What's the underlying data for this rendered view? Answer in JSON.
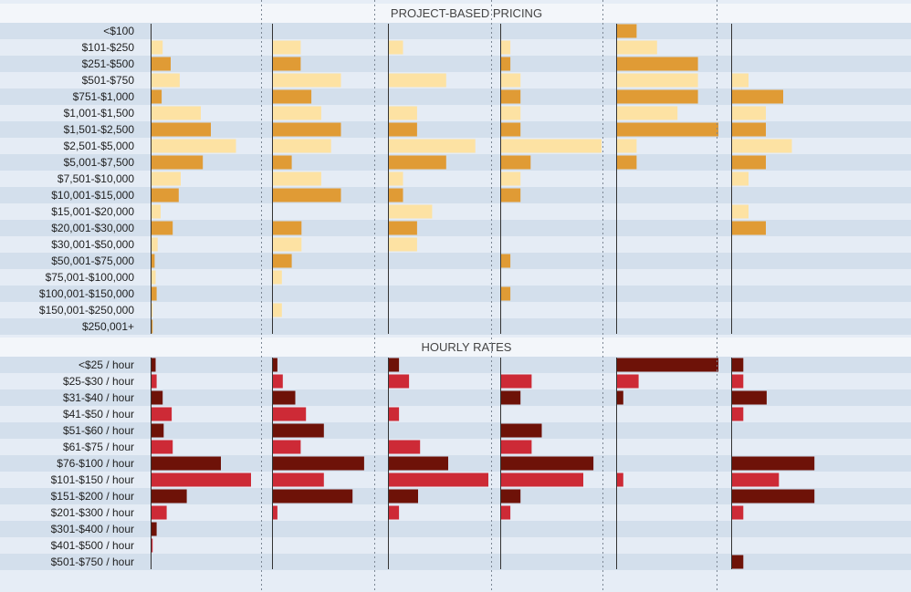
{
  "chart_data": [
    {
      "type": "bar",
      "title": "PROJECT-BASED PRICING",
      "categories": [
        "<$100",
        "$101-$250",
        "$251-$500",
        "$501-$750",
        "$751-$1,000",
        "$1,001-$1,500",
        "$1,501-$2,500",
        "$2,501-$5,000",
        "$5,001-$7,500",
        "$7,501-$10,000",
        "$10,001-$15,000",
        "$15,001-$20,000",
        "$20,001-$30,000",
        "$30,001-$50,000",
        "$50,001-$75,000",
        "$75,001-$100,000",
        "$100,001-$150,000",
        "$150,001-$250,000",
        "$250,001+"
      ],
      "series": [
        {
          "values": [
            0,
            1.2,
            2.0,
            2.9,
            1.1,
            5.0,
            6.0,
            8.5,
            5.2,
            3.0,
            2.8,
            1.0,
            2.2,
            0.7,
            0.4,
            0.5,
            0.6,
            0.2,
            0.2
          ]
        },
        {
          "values": [
            0,
            3.2,
            3.2,
            7.7,
            4.4,
            5.5,
            7.7,
            6.6,
            2.2,
            5.5,
            7.7,
            0,
            3.3,
            3.3,
            2.2,
            1.1,
            0,
            1.1,
            0
          ]
        },
        {
          "values": [
            0,
            1.5,
            0,
            5.8,
            0,
            2.9,
            2.9,
            8.7,
            5.8,
            1.5,
            1.5,
            4.4,
            2.9,
            2.9,
            0,
            0,
            0,
            0,
            0
          ]
        },
        {
          "values": [
            0,
            1,
            1,
            2,
            2,
            2,
            2,
            10,
            3,
            2,
            2,
            0,
            0,
            0,
            1,
            0,
            1,
            0,
            0
          ]
        },
        {
          "values": [
            2,
            4,
            8,
            8,
            8,
            6,
            10,
            2,
            2,
            0,
            0,
            0,
            0,
            0,
            0,
            0,
            0,
            0,
            0
          ]
        },
        {
          "values": [
            0,
            0,
            0,
            2,
            6,
            4,
            4,
            7,
            4,
            2,
            0,
            2,
            4,
            0,
            0,
            0,
            0,
            0,
            0
          ]
        }
      ],
      "xlim": [
        0,
        10
      ]
    },
    {
      "type": "bar",
      "title": "HOURLY RATES",
      "categories": [
        "<$25 / hour",
        "$25-$30 / hour",
        "$31-$40 / hour",
        "$41-$50 / hour",
        "$51-$60 / hour",
        "$61-$75 / hour",
        "$76-$100 / hour",
        "$101-$150 / hour",
        "$151-$200 / hour",
        "$201-$300 / hour",
        "$301-$400 / hour",
        "$401-$500 / hour",
        "$501-$750 / hour"
      ],
      "series": [
        {
          "values": [
            0.5,
            0.6,
            1.2,
            2.1,
            1.3,
            2.2,
            7.0,
            10.0,
            3.6,
            1.6,
            0.6,
            0.2,
            0
          ]
        },
        {
          "values": [
            0.6,
            1.2,
            2.6,
            3.8,
            5.8,
            3.2,
            10.3,
            5.8,
            9.0,
            0.6,
            0,
            0,
            0
          ]
        },
        {
          "values": [
            1.1,
            2.1,
            0,
            1.1,
            0,
            3.2,
            6.0,
            10.0,
            3.0,
            1.1,
            0,
            0,
            0
          ]
        },
        {
          "values": [
            0,
            3.1,
            2.0,
            0,
            4.1,
            3.1,
            9.2,
            8.2,
            2.0,
            1.0,
            0,
            0,
            0
          ]
        },
        {
          "values": [
            10,
            2.2,
            0.7,
            0,
            0,
            0,
            0,
            0.7,
            0,
            0,
            0,
            0,
            0
          ]
        },
        {
          "values": [
            1.4,
            1.4,
            4.1,
            1.4,
            0,
            0,
            9.6,
            5.5,
            9.6,
            1.4,
            0,
            0,
            1.4
          ]
        }
      ],
      "xlim": [
        0,
        10
      ]
    }
  ],
  "colors": {
    "project_dark": "#e09b35",
    "project_light": "#fde2a3",
    "hourly_dark": "#6e1208",
    "hourly_light": "#cd2a36",
    "row_dark": "#d3dfec",
    "row_light": "#e5ecf5",
    "header_band": "#f3f6fa",
    "title_text": "#444444",
    "label_text": "#1f1f1f",
    "axis": "#333333",
    "divider": "#7c8794"
  }
}
